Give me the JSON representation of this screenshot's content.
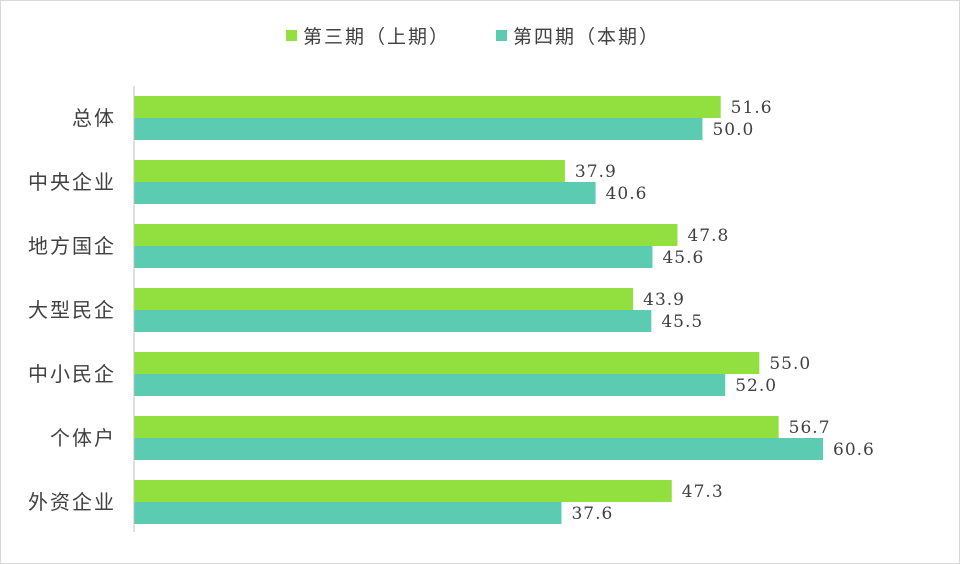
{
  "chart_data": {
    "type": "bar",
    "orientation": "horizontal",
    "categories": [
      "总体",
      "中央企业",
      "地方国企",
      "大型民企",
      "中小民企",
      "个体户",
      "外资企业"
    ],
    "series": [
      {
        "name": "第三期（上期）",
        "color": "#92e03f",
        "values": [
          51.6,
          37.9,
          47.8,
          43.9,
          55.0,
          56.7,
          47.3
        ]
      },
      {
        "name": "第四期（本期）",
        "color": "#5bcbb2",
        "values": [
          50.0,
          40.6,
          45.6,
          45.5,
          52.0,
          60.6,
          37.6
        ]
      }
    ],
    "value_labels": [
      [
        "51.6",
        "37.9",
        "47.8",
        "43.9",
        "55.0",
        "56.7",
        "47.3"
      ],
      [
        "50.0",
        "40.6",
        "45.6",
        "45.5",
        "52.0",
        "60.6",
        "37.6"
      ]
    ],
    "title": "",
    "xlabel": "",
    "ylabel": "",
    "xlim": [
      0,
      60.6
    ],
    "grid": false,
    "legend_position": "top-center"
  }
}
